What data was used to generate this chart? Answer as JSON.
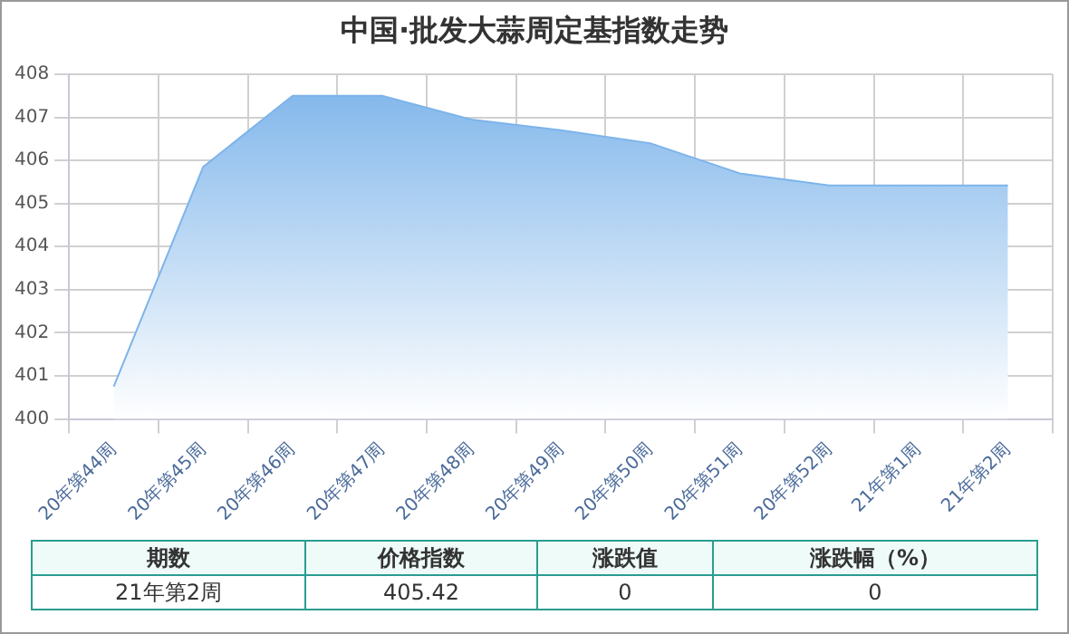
{
  "chart_data": {
    "type": "area",
    "title": "中国·批发大蒜周定基指数走势",
    "categories": [
      "20年第44周",
      "20年第45周",
      "20年第46周",
      "20年第47周",
      "20年第48周",
      "20年第49周",
      "20年第50周",
      "20年第51周",
      "20年第52周",
      "21年第1周",
      "21年第2周"
    ],
    "series": [
      {
        "color": "#7db4ea",
        "values": [
          400.75,
          405.85,
          407.5,
          407.5,
          406.95,
          406.7,
          406.4,
          405.7,
          405.42,
          405.42,
          405.42
        ]
      }
    ],
    "ylim": [
      400,
      408
    ],
    "yticks": [
      400,
      401,
      402,
      403,
      404,
      405,
      406,
      407,
      408
    ],
    "grid": true,
    "legend": false,
    "annotations": [
      "期数",
      "价格指数",
      "涨跌值",
      "涨跌幅（%）",
      "21年第2周",
      "405.42",
      "0",
      "0"
    ]
  }
}
